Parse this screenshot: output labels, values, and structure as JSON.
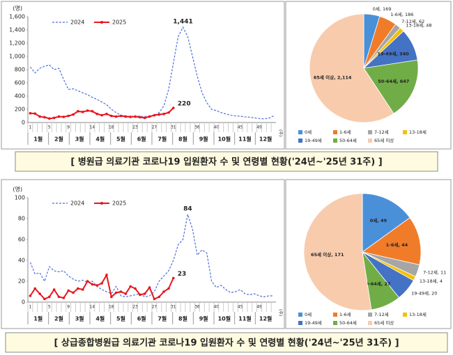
{
  "captions": [
    "[ 병원급 의료기관 코로나19 입원환자 수 및 연령별 현황('24년~'25년 31주) ]",
    "[ 상급종합병원급 의료기관 코로나19 입원환자 수 및 연령별 현황('24년~'25년 31주) ]"
  ],
  "chart_data": [
    {
      "type": "line",
      "y_label": "(명)",
      "x_label": "(주)",
      "categories": [
        "1",
        null,
        null,
        null,
        "5",
        null,
        null,
        null,
        "9",
        null,
        null,
        null,
        null,
        "14",
        null,
        null,
        null,
        "18",
        null,
        null,
        null,
        null,
        "23",
        null,
        null,
        null,
        "27",
        null,
        null,
        null,
        "31",
        null,
        null,
        null,
        null,
        "36",
        null,
        null,
        null,
        "40",
        null,
        null,
        null,
        null,
        "45",
        null,
        null,
        null,
        "49",
        null,
        null,
        null
      ],
      "months": [
        "1월",
        "2월",
        "3월",
        "4월",
        "5월",
        "6월",
        "7월",
        "8월",
        "9월",
        "10월",
        "11월",
        "12월"
      ],
      "ylim": [
        0,
        1600
      ],
      "yticks": [
        0,
        200,
        400,
        600,
        800,
        {
          "value": 1000,
          "label": "1,000"
        },
        {
          "value": 1200,
          "label": "1,200"
        },
        {
          "value": 1400,
          "label": "1,400"
        },
        {
          "value": 1600,
          "label": "1,600"
        }
      ],
      "grid": false,
      "series": [
        {
          "name": "2024",
          "color": "#4a6fdc",
          "dash": true,
          "marker": false,
          "values": [
            840,
            750,
            820,
            850,
            870,
            800,
            820,
            650,
            500,
            510,
            480,
            450,
            420,
            380,
            350,
            310,
            270,
            200,
            150,
            110,
            100,
            90,
            100,
            95,
            90,
            100,
            110,
            150,
            250,
            500,
            900,
            1300,
            1441,
            1300,
            1000,
            700,
            450,
            300,
            200,
            180,
            150,
            130,
            110,
            100,
            95,
            85,
            80,
            70,
            60,
            55,
            65,
            100
          ],
          "value_labels": [
            null,
            null,
            null,
            null,
            null,
            null,
            null,
            null,
            null,
            null,
            null,
            null,
            null,
            null,
            null,
            null,
            null,
            null,
            null,
            null,
            null,
            null,
            null,
            null,
            null,
            null,
            null,
            null,
            null,
            null,
            null,
            null,
            "1,441",
            null,
            null,
            null,
            null,
            null,
            null,
            null,
            null,
            null,
            null,
            null,
            null,
            null,
            null,
            null,
            null,
            null,
            null,
            null
          ]
        },
        {
          "name": "2025",
          "color": "#e8141c",
          "dash": false,
          "marker": true,
          "values": [
            140,
            135,
            90,
            80,
            60,
            70,
            90,
            85,
            100,
            120,
            170,
            160,
            180,
            170,
            130,
            110,
            130,
            100,
            90,
            100,
            90,
            85,
            90,
            80,
            70,
            90,
            110,
            120,
            130,
            150,
            220,
            null,
            null,
            null,
            null,
            null,
            null,
            null,
            null,
            null,
            null,
            null,
            null,
            null,
            null,
            null,
            null,
            null,
            null,
            null,
            null,
            null
          ],
          "value_labels": [
            null,
            null,
            null,
            null,
            null,
            null,
            null,
            null,
            null,
            null,
            null,
            null,
            null,
            null,
            null,
            null,
            null,
            null,
            null,
            null,
            null,
            null,
            null,
            null,
            null,
            null,
            null,
            null,
            null,
            null,
            "220",
            null,
            null,
            null,
            null,
            null,
            null,
            null,
            null,
            null,
            null,
            null,
            null,
            null,
            null,
            null,
            null,
            null,
            null,
            null,
            null,
            null
          ]
        }
      ]
    },
    {
      "type": "pie",
      "categories": [
        "0세",
        "1-6세",
        "7-12세",
        "13-18세",
        "19-49세",
        "50-64세",
        "65세 이상"
      ],
      "values": [
        169,
        186,
        62,
        48,
        340,
        647,
        2114
      ],
      "value_labels": [
        "0세, 169",
        "1-6세, 186",
        "7-12세, 62",
        "13-18세, 48",
        "19-49세, 340",
        "50-64세, 647",
        "65세 이상, 2,114"
      ],
      "colors": [
        "#4a90d9",
        "#f07c2a",
        "#a6a6a6",
        "#f5c000",
        "#4472c4",
        "#70ad47",
        "#f8cbad"
      ]
    },
    {
      "type": "line",
      "y_label": "(명)",
      "x_label": "(주)",
      "categories": [
        "1",
        null,
        null,
        null,
        "5",
        null,
        null,
        null,
        "9",
        null,
        null,
        null,
        null,
        "14",
        null,
        null,
        null,
        "18",
        null,
        null,
        null,
        null,
        "23",
        null,
        null,
        null,
        "27",
        null,
        null,
        null,
        "31",
        null,
        null,
        null,
        null,
        "36",
        null,
        null,
        null,
        "40",
        null,
        null,
        null,
        null,
        "45",
        null,
        null,
        null,
        "49",
        null,
        null,
        null
      ],
      "months": [
        "1월",
        "2월",
        "3월",
        "4월",
        "5월",
        "6월",
        "7월",
        "8월",
        "9월",
        "10월",
        "11월",
        "12월"
      ],
      "ylim": [
        0,
        100
      ],
      "yticks": [
        0,
        20,
        40,
        60,
        80,
        100
      ],
      "grid": false,
      "series": [
        {
          "name": "2024",
          "color": "#4a6fdc",
          "dash": true,
          "marker": false,
          "values": [
            38,
            27,
            28,
            20,
            34,
            30,
            29,
            30,
            25,
            22,
            20,
            21,
            19,
            20,
            15,
            12,
            10,
            8,
            15,
            6,
            5,
            6,
            7,
            8,
            5,
            6,
            10,
            20,
            25,
            30,
            40,
            55,
            60,
            84,
            70,
            45,
            50,
            47,
            20,
            14,
            16,
            12,
            9,
            10,
            12,
            8,
            7,
            8,
            6,
            5,
            6,
            6
          ],
          "value_labels": [
            null,
            null,
            null,
            null,
            null,
            null,
            null,
            null,
            null,
            null,
            null,
            null,
            null,
            null,
            null,
            null,
            null,
            null,
            null,
            null,
            null,
            null,
            null,
            null,
            null,
            null,
            null,
            null,
            null,
            null,
            null,
            null,
            null,
            "84",
            null,
            null,
            null,
            null,
            null,
            null,
            null,
            null,
            null,
            null,
            null,
            null,
            null,
            null,
            null,
            null,
            null,
            null
          ]
        },
        {
          "name": "2025",
          "color": "#e8141c",
          "dash": false,
          "marker": true,
          "values": [
            6,
            13,
            8,
            3,
            5,
            12,
            5,
            4,
            11,
            9,
            13,
            12,
            20,
            17,
            16,
            18,
            26,
            5,
            9,
            10,
            8,
            15,
            13,
            7,
            8,
            14,
            3,
            5,
            10,
            13,
            23,
            null,
            null,
            null,
            null,
            null,
            null,
            null,
            null,
            null,
            null,
            null,
            null,
            null,
            null,
            null,
            null,
            null,
            null,
            null,
            null,
            null
          ],
          "value_labels": [
            null,
            null,
            null,
            null,
            null,
            null,
            null,
            null,
            null,
            null,
            null,
            null,
            null,
            null,
            null,
            null,
            null,
            null,
            null,
            null,
            null,
            null,
            null,
            null,
            null,
            null,
            null,
            null,
            null,
            null,
            "23",
            null,
            null,
            null,
            null,
            null,
            null,
            null,
            null,
            null,
            null,
            null,
            null,
            null,
            null,
            null,
            null,
            null,
            null,
            null,
            null,
            null
          ]
        }
      ]
    },
    {
      "type": "pie",
      "categories": [
        "0세",
        "1-6세",
        "7-12세",
        "13-18세",
        "19-49세",
        "50-64세",
        "65세 이상"
      ],
      "values": [
        49,
        44,
        11,
        4,
        20,
        27,
        171
      ],
      "value_labels": [
        "0세, 49",
        "1-6세, 44",
        "7-12세, 11",
        "13-18세, 4",
        "19-49세, 20",
        "50-64세, 27",
        "65세 이상, 171"
      ],
      "colors": [
        "#4a90d9",
        "#f07c2a",
        "#a6a6a6",
        "#f5c000",
        "#4472c4",
        "#70ad47",
        "#f8cbad"
      ]
    }
  ]
}
